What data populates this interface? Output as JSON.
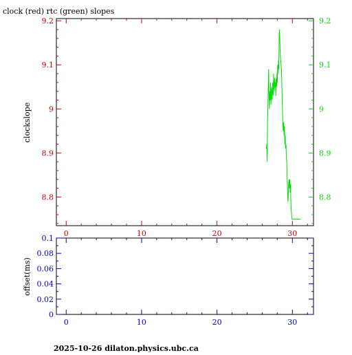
{
  "title": "clock (red) rtc (green) slopes",
  "footer": "2025-10-26  dilaton.physics.ubc.ca",
  "colors": {
    "red": "#cc0000",
    "green": "#00dd00",
    "blue": "#0000cc",
    "axis": "#000000"
  },
  "chart_data": [
    {
      "type": "line",
      "title": "clock (red) rtc (green) slopes",
      "ylabel": "clockslope",
      "xlim": [
        -1.3,
        32.8
      ],
      "ylim": [
        8.735,
        9.205
      ],
      "xticks": [
        0,
        10,
        20,
        30
      ],
      "yticks_left": [
        8.8,
        8.9,
        9.0,
        9.1,
        9.2
      ],
      "ytick_labels_left": [
        "8.8",
        "8.9",
        "9",
        "9.1",
        "9.2"
      ],
      "yticks_right": [
        8.8,
        8.9,
        9.0,
        9.1,
        9.2
      ],
      "ytick_labels_right": [
        "8.8",
        "8.9",
        "9",
        "9.1",
        "9.2"
      ],
      "grid": false,
      "series": [
        {
          "color": "green",
          "x": [
            26.55,
            26.6,
            26.65,
            26.7,
            26.75,
            26.8,
            26.85,
            26.9,
            26.95,
            27.0,
            27.05,
            27.1,
            27.15,
            27.2,
            27.25,
            27.3,
            27.35,
            27.4,
            27.45,
            27.5,
            27.55,
            27.6,
            27.65,
            27.7,
            27.75,
            27.8,
            27.85,
            27.9,
            27.95,
            28.0,
            28.05,
            28.1,
            28.15,
            28.2,
            28.25,
            28.3,
            28.35,
            28.4,
            28.45,
            28.5,
            28.55,
            28.6,
            28.65,
            28.7,
            28.75,
            28.8,
            28.85,
            28.9,
            28.95,
            29.0,
            29.05,
            29.1,
            29.15,
            29.2,
            29.25,
            29.3,
            29.35,
            29.4,
            29.45,
            29.5,
            29.55,
            29.6,
            29.65,
            29.7,
            29.75,
            29.8,
            29.85,
            29.9,
            29.95,
            30.0,
            30.05,
            30.1,
            30.15,
            30.2,
            30.25,
            30.3,
            30.35,
            30.4,
            30.45,
            30.5,
            30.55,
            30.6,
            30.65,
            30.7,
            30.75,
            30.8,
            30.85,
            30.9,
            30.95,
            31.0,
            31.05,
            31.1
          ],
          "y": [
            8.91,
            8.92,
            8.88,
            8.97,
            9.0,
            9.05,
            9.09,
            9.03,
            9.0,
            9.04,
            9.02,
            9.06,
            9.01,
            9.03,
            9.05,
            9.02,
            9.04,
            9.06,
            9.03,
            9.08,
            9.05,
            9.04,
            9.07,
            9.05,
            9.06,
            9.03,
            9.07,
            9.05,
            9.08,
            9.06,
            9.1,
            9.08,
            9.11,
            9.09,
            9.17,
            9.18,
            9.15,
            9.12,
            9.11,
            9.1,
            9.09,
            9.06,
            9.02,
            8.99,
            8.96,
            8.95,
            8.97,
            8.94,
            8.96,
            8.92,
            8.94,
            8.91,
            8.92,
            8.89,
            8.88,
            8.85,
            8.82,
            8.79,
            8.8,
            8.83,
            8.84,
            8.82,
            8.84,
            8.81,
            8.83,
            8.79,
            8.77,
            8.76,
            8.75,
            8.75,
            8.75,
            8.75,
            8.75,
            8.75,
            8.75,
            8.75,
            8.75,
            8.75,
            8.75,
            8.75,
            8.75,
            8.75,
            8.75,
            8.75,
            8.75,
            8.75,
            8.75,
            8.75,
            8.75,
            8.75,
            8.75,
            8.75
          ]
        }
      ]
    },
    {
      "type": "line",
      "ylabel": "offset(ms)",
      "xlim": [
        -1.3,
        32.8
      ],
      "ylim": [
        0,
        0.1
      ],
      "xticks": [
        0,
        10,
        20,
        30
      ],
      "yticks": [
        0,
        0.02,
        0.04,
        0.06,
        0.08,
        0.1
      ],
      "ytick_labels": [
        "0",
        "0.02",
        "0.04",
        "0.06",
        "0.08",
        "0.1"
      ],
      "grid": false,
      "series": []
    }
  ]
}
